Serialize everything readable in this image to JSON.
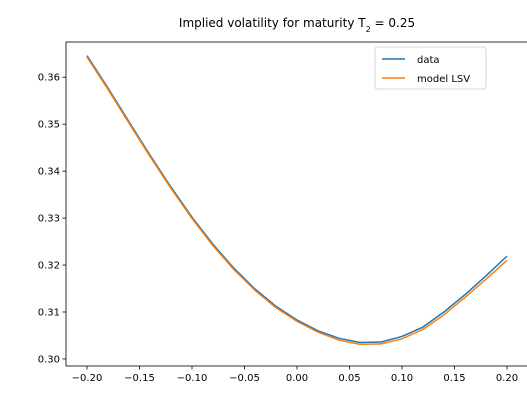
{
  "chart_data": {
    "type": "line",
    "title": {
      "prefix": "Implied volatility for maturity T",
      "subscript": "2",
      "suffix": " = 0.25"
    },
    "xlabel": "",
    "ylabel": "",
    "xlim": [
      -0.22,
      0.22
    ],
    "ylim": [
      0.2985,
      0.3675
    ],
    "xticks": [
      -0.2,
      -0.15,
      -0.1,
      -0.05,
      0.0,
      0.05,
      0.1,
      0.15,
      0.2
    ],
    "xtick_labels": [
      "−0.20",
      "−0.15",
      "−0.10",
      "−0.05",
      "0.00",
      "0.05",
      "0.10",
      "0.15",
      "0.20"
    ],
    "yticks": [
      0.3,
      0.31,
      0.32,
      0.33,
      0.34,
      0.35,
      0.36
    ],
    "ytick_labels": [
      "0.30",
      "0.31",
      "0.32",
      "0.33",
      "0.34",
      "0.35",
      "0.36"
    ],
    "grid": false,
    "legend_position": "top-right",
    "x": [
      -0.2,
      -0.18,
      -0.16,
      -0.14,
      -0.12,
      -0.1,
      -0.08,
      -0.06,
      -0.04,
      -0.02,
      0.0,
      0.02,
      0.04,
      0.06,
      0.08,
      0.1,
      0.12,
      0.14,
      0.16,
      0.18,
      0.2
    ],
    "series": [
      {
        "name": "data",
        "color": "#1f77b4",
        "values": [
          0.3646,
          0.3577,
          0.3505,
          0.3434,
          0.3366,
          0.3302,
          0.3244,
          0.3193,
          0.3149,
          0.3112,
          0.3083,
          0.306,
          0.3044,
          0.3035,
          0.3036,
          0.3048,
          0.3068,
          0.31,
          0.3137,
          0.3177,
          0.3219
        ]
      },
      {
        "name": "model LSV",
        "color": "#ff7f0e",
        "values": [
          0.3643,
          0.3574,
          0.3502,
          0.3431,
          0.3363,
          0.3299,
          0.3241,
          0.319,
          0.3146,
          0.3109,
          0.308,
          0.3057,
          0.304,
          0.3031,
          0.3032,
          0.3043,
          0.3063,
          0.3094,
          0.3131,
          0.317,
          0.321
        ]
      }
    ]
  }
}
